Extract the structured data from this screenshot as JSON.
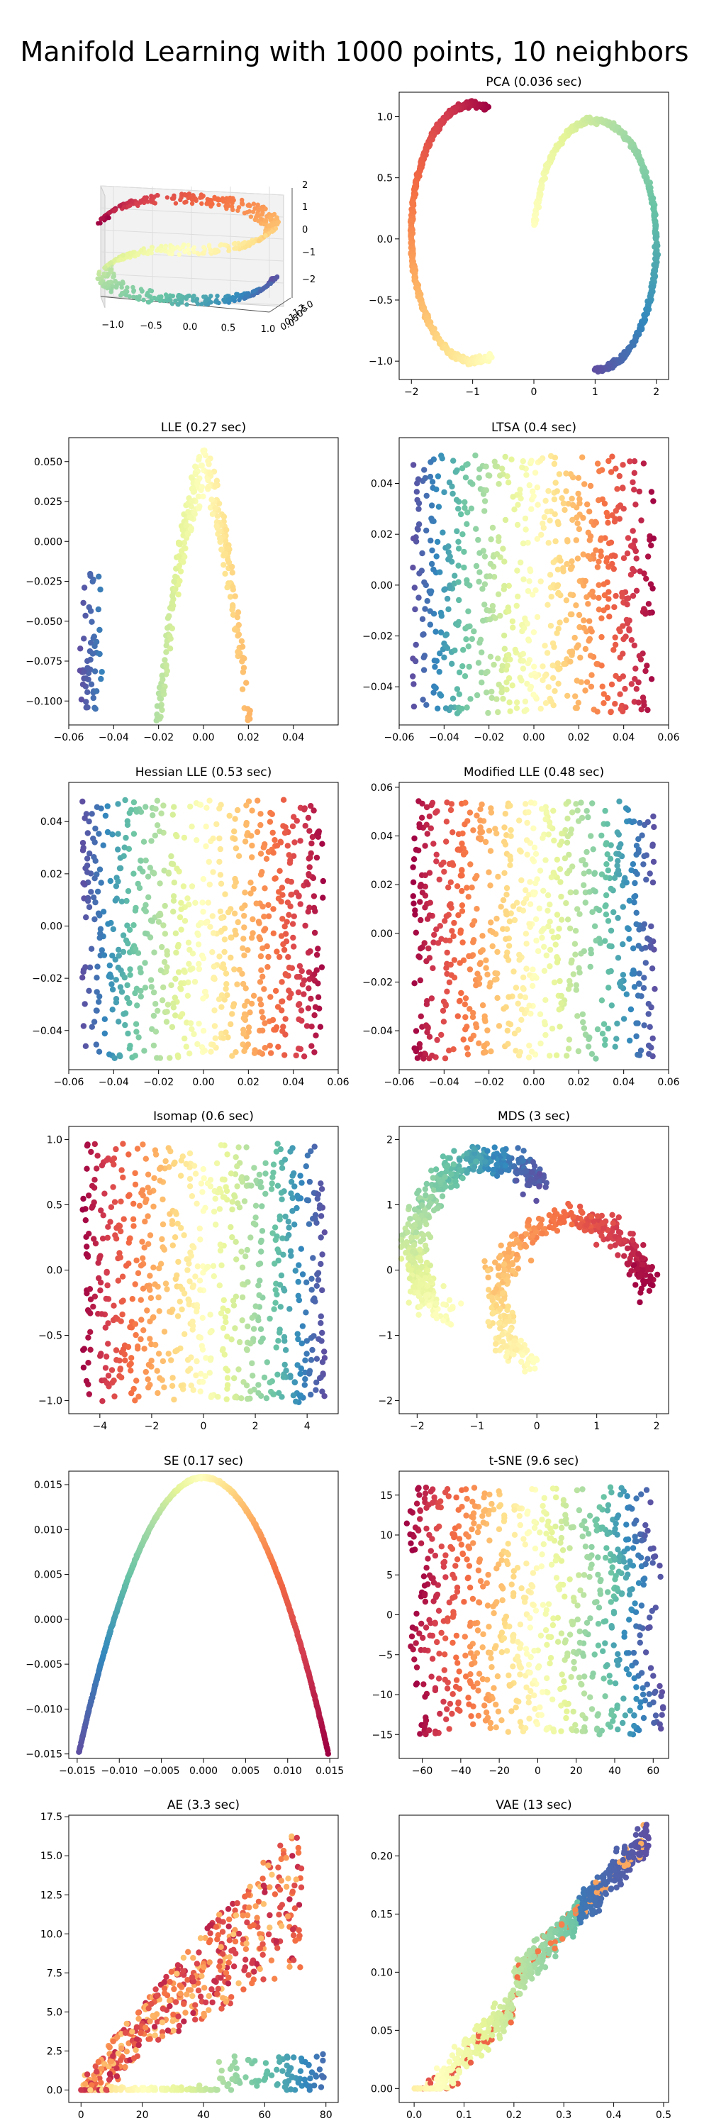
{
  "figure": {
    "title": "Manifold Learning with 1000 points, 10 neighbors"
  },
  "colormap": [
    "#9e0142",
    "#d53e4f",
    "#f46d43",
    "#fdae61",
    "#fee08b",
    "#ffffbf",
    "#e6f598",
    "#abdda4",
    "#66c2a5",
    "#3288bd",
    "#5e4fa2"
  ],
  "chart_data": [
    {
      "type": "scatter3d",
      "name": "s-curve-3d",
      "title": "",
      "points": 1000,
      "xticks": [
        "−1.0",
        "−0.5",
        "0.0",
        "0.5",
        "1.0"
      ],
      "yticks": [
        "0.0",
        "0.5",
        "1.0",
        "1.5",
        "2.0"
      ],
      "zticks": [
        "2",
        "1",
        "0",
        "−1",
        "−2"
      ],
      "xlim": [
        -1,
        1
      ],
      "ylim": [
        0,
        2
      ],
      "zlim": [
        -2,
        2
      ]
    },
    {
      "type": "scatter",
      "name": "pca",
      "title": "PCA (0.036 sec)",
      "shape": "s-curve-line",
      "points": 1000,
      "spread": 0.02,
      "xlim": [
        -2.2,
        2.2
      ],
      "ylim": [
        -1.15,
        1.2
      ],
      "xticks": [
        -2,
        -1,
        0,
        1,
        2
      ],
      "xtick_labels": [
        "−2",
        "−1",
        "0",
        "1",
        "2"
      ],
      "yticks": [
        1.0,
        0.5,
        0.0,
        -0.5,
        -1.0
      ],
      "ytick_labels": [
        "1.0",
        "0.5",
        "0.0",
        "−0.5",
        "−1.0"
      ]
    },
    {
      "type": "scatter",
      "name": "lle",
      "title": "LLE (0.27 sec)",
      "shape": "arch",
      "points": 700,
      "xlim": [
        -0.06,
        0.06
      ],
      "ylim": [
        -0.115,
        0.065
      ],
      "xticks": [
        -0.06,
        -0.04,
        -0.02,
        0.0,
        0.02,
        0.04
      ],
      "xtick_labels": [
        "−0.06",
        "−0.04",
        "−0.02",
        "0.00",
        "0.02",
        "0.04"
      ],
      "yticks": [
        0.05,
        0.025,
        0.0,
        -0.025,
        -0.05,
        -0.075,
        -0.1
      ],
      "ytick_labels": [
        "0.050",
        "0.025",
        "0.000",
        "−0.025",
        "−0.050",
        "−0.075",
        "−0.100"
      ]
    },
    {
      "type": "scatter",
      "name": "ltsa",
      "title": "LTSA (0.4 sec)",
      "shape": "rect",
      "color_dir": "reverse",
      "points": 700,
      "xlim": [
        -0.06,
        0.06
      ],
      "ylim": [
        -0.055,
        0.058
      ],
      "xticks": [
        -0.06,
        -0.04,
        -0.02,
        0.0,
        0.02,
        0.04,
        0.06
      ],
      "xtick_labels": [
        "−0.06",
        "−0.04",
        "−0.02",
        "0.00",
        "0.02",
        "0.04",
        "0.06"
      ],
      "yticks": [
        0.04,
        0.02,
        0.0,
        -0.02,
        -0.04
      ],
      "ytick_labels": [
        "0.04",
        "0.02",
        "0.00",
        "−0.02",
        "−0.04"
      ]
    },
    {
      "type": "scatter",
      "name": "hessian-lle",
      "title": "Hessian LLE (0.53 sec)",
      "shape": "rect",
      "color_dir": "reverse",
      "points": 700,
      "xlim": [
        -0.06,
        0.06
      ],
      "ylim": [
        -0.055,
        0.055
      ],
      "xticks": [
        -0.06,
        -0.04,
        -0.02,
        0.0,
        0.02,
        0.04,
        0.06
      ],
      "xtick_labels": [
        "−0.06",
        "−0.04",
        "−0.02",
        "0.00",
        "0.02",
        "0.04",
        "0.06"
      ],
      "yticks": [
        0.04,
        0.02,
        0.0,
        -0.02,
        -0.04
      ],
      "ytick_labels": [
        "0.04",
        "0.02",
        "0.00",
        "−0.02",
        "−0.04"
      ]
    },
    {
      "type": "scatter",
      "name": "modified-lle",
      "title": "Modified LLE (0.48 sec)",
      "shape": "rect",
      "color_dir": "forward",
      "points": 700,
      "xlim": [
        -0.06,
        0.06
      ],
      "ylim": [
        -0.056,
        0.062
      ],
      "xticks": [
        -0.06,
        -0.04,
        -0.02,
        0.0,
        0.02,
        0.04,
        0.06
      ],
      "xtick_labels": [
        "−0.06",
        "−0.04",
        "−0.02",
        "0.00",
        "0.02",
        "0.04",
        "0.06"
      ],
      "yticks": [
        0.06,
        0.04,
        0.02,
        0.0,
        -0.02,
        -0.04
      ],
      "ytick_labels": [
        "0.06",
        "0.04",
        "0.02",
        "0.00",
        "−0.02",
        "−0.04"
      ]
    },
    {
      "type": "scatter",
      "name": "isomap",
      "title": "Isomap (0.6 sec)",
      "shape": "rect",
      "color_dir": "forward",
      "points": 700,
      "xlim": [
        -5.2,
        5.2
      ],
      "ylim": [
        -1.1,
        1.1
      ],
      "xticks": [
        -4,
        -2,
        0,
        2,
        4
      ],
      "xtick_labels": [
        "−4",
        "−2",
        "0",
        "2",
        "4"
      ],
      "yticks": [
        1.0,
        0.5,
        0.0,
        -0.5,
        -1.0
      ],
      "ytick_labels": [
        "1.0",
        "0.5",
        "0.0",
        "−0.5",
        "−1.0"
      ]
    },
    {
      "type": "scatter",
      "name": "mds",
      "title": "MDS (3 sec)",
      "shape": "s-curve-band",
      "points": 900,
      "xlim": [
        -2.3,
        2.2
      ],
      "ylim": [
        -2.2,
        2.2
      ],
      "xticks": [
        -2,
        -1,
        0,
        1,
        2
      ],
      "xtick_labels": [
        "−2",
        "−1",
        "0",
        "1",
        "2"
      ],
      "yticks": [
        2,
        1,
        0,
        -1,
        -2
      ],
      "ytick_labels": [
        "2",
        "1",
        "0",
        "−1",
        "−2"
      ]
    },
    {
      "type": "scatter",
      "name": "se",
      "title": "SE (0.17 sec)",
      "shape": "parabola",
      "points": 700,
      "xlim": [
        -0.016,
        0.016
      ],
      "ylim": [
        -0.0155,
        0.0165
      ],
      "xticks": [
        -0.015,
        -0.01,
        -0.005,
        0.0,
        0.005,
        0.01,
        0.015
      ],
      "xtick_labels": [
        "−0.015",
        "−0.010",
        "−0.005",
        "0.000",
        "0.005",
        "0.010",
        "0.015"
      ],
      "yticks": [
        0.015,
        0.01,
        0.005,
        0.0,
        -0.005,
        -0.01,
        -0.015
      ],
      "ytick_labels": [
        "0.015",
        "0.010",
        "0.005",
        "0.000",
        "−0.005",
        "−0.010",
        "−0.015"
      ]
    },
    {
      "type": "scatter",
      "name": "tsne",
      "title": "t-SNE (9.6 sec)",
      "shape": "rect-wavy",
      "points": 800,
      "xlim": [
        -72,
        68
      ],
      "ylim": [
        -18,
        18
      ],
      "xticks": [
        -60,
        -40,
        -20,
        0,
        20,
        40,
        60
      ],
      "xtick_labels": [
        "−60",
        "−40",
        "−20",
        "0",
        "20",
        "40",
        "60"
      ],
      "yticks": [
        15,
        10,
        5,
        0,
        -5,
        -10,
        -15
      ],
      "ytick_labels": [
        "15",
        "10",
        "5",
        "0",
        "−5",
        "−10",
        "−15"
      ]
    },
    {
      "type": "scatter",
      "name": "ae",
      "title": "AE (3.3 sec)",
      "shape": "ae-fan",
      "points": 700,
      "xlim": [
        -4,
        84
      ],
      "ylim": [
        -0.8,
        17.6
      ],
      "xticks": [
        0,
        20,
        40,
        60,
        80
      ],
      "xtick_labels": [
        "0",
        "20",
        "40",
        "60",
        "80"
      ],
      "yticks": [
        17.5,
        15,
        12.5,
        10,
        7.5,
        5,
        2.5,
        0
      ],
      "ytick_labels": [
        "17.5",
        "15.0",
        "12.5",
        "10.0",
        "7.5",
        "5.0",
        "2.5",
        "0.0"
      ]
    },
    {
      "type": "scatter",
      "name": "vae",
      "title": "VAE (13 sec)",
      "shape": "vae-diag",
      "points": 800,
      "xlim": [
        -0.03,
        0.51
      ],
      "ylim": [
        -0.012,
        0.235
      ],
      "xticks": [
        0.0,
        0.1,
        0.2,
        0.3,
        0.4,
        0.5
      ],
      "xtick_labels": [
        "0.0",
        "0.1",
        "0.2",
        "0.3",
        "0.4",
        "0.5"
      ],
      "yticks": [
        0.2,
        0.15,
        0.1,
        0.05,
        0.0
      ],
      "ytick_labels": [
        "0.20",
        "0.15",
        "0.10",
        "0.05",
        "0.00"
      ]
    }
  ]
}
